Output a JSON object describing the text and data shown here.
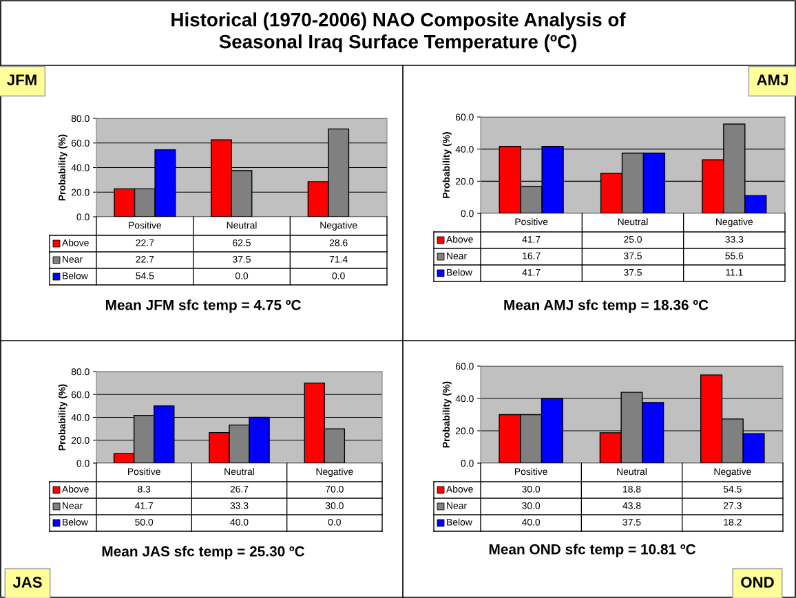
{
  "chart_data": [
    {
      "type": "bar",
      "title": "Historical (1970-2006) NAO Composite Analysis of\nSeasonal Iraq Surface Temperature (ºC)",
      "subtitle": "JFM",
      "ylabel": "Probability (%)",
      "categories": [
        "Positive",
        "Neutral",
        "Negative"
      ],
      "series": [
        {
          "name": "Above",
          "color": "#ff0000",
          "values": [
            22.7,
            62.5,
            28.6
          ],
          "value_labels": [
            "22.7",
            "62.5",
            "28.6"
          ]
        },
        {
          "name": "Near",
          "color": "#808080",
          "values": [
            22.7,
            37.5,
            71.4
          ],
          "value_labels": [
            "22.7",
            "37.5",
            "71.4"
          ]
        },
        {
          "name": "Below",
          "color": "#0000ff",
          "values": [
            54.5,
            0.0,
            0.0
          ],
          "value_labels": [
            "54.5",
            "0.0",
            "0.0"
          ]
        }
      ],
      "ylim": [
        0,
        80
      ],
      "yticks": [
        {
          "value": 0,
          "label": "0.0"
        },
        {
          "value": 20,
          "label": "20.0"
        },
        {
          "value": 40,
          "label": "40.0"
        },
        {
          "value": 60,
          "label": "60.0"
        },
        {
          "value": 80,
          "label": "80.0"
        }
      ],
      "grid": "y",
      "legend": "bottom left",
      "annotations": [
        "Mean JFM sfc temp = 4.75 ºC"
      ]
    },
    {
      "type": "bar",
      "subtitle": "AMJ",
      "ylabel": "Probability (%)",
      "categories": [
        "Positive",
        "Neutral",
        "Negative"
      ],
      "series": [
        {
          "name": "Above",
          "color": "#ff0000",
          "values": [
            41.7,
            25.0,
            33.3
          ],
          "value_labels": [
            "41.7",
            "25.0",
            "33.3"
          ]
        },
        {
          "name": "Near",
          "color": "#808080",
          "values": [
            16.7,
            37.5,
            55.6
          ],
          "value_labels": [
            "16.7",
            "37.5",
            "55.6"
          ]
        },
        {
          "name": "Below",
          "color": "#0000ff",
          "values": [
            41.7,
            37.5,
            11.1
          ],
          "value_labels": [
            "41.7",
            "37.5",
            "11.1"
          ]
        }
      ],
      "ylim": [
        0,
        60
      ],
      "yticks": [
        {
          "value": 0,
          "label": "0.0"
        },
        {
          "value": 20,
          "label": "20.0"
        },
        {
          "value": 40,
          "label": "40.0"
        },
        {
          "value": 60,
          "label": "60.0"
        }
      ],
      "grid": "y",
      "legend": "bottom left",
      "annotations": [
        "Mean AMJ sfc temp = 18.36 ºC"
      ]
    },
    {
      "type": "bar",
      "subtitle": "JAS",
      "ylabel": "Probability (%)",
      "categories": [
        "Positive",
        "Neutral",
        "Negative"
      ],
      "series": [
        {
          "name": "Above",
          "color": "#ff0000",
          "values": [
            8.3,
            26.7,
            70.0
          ],
          "value_labels": [
            "8.3",
            "26.7",
            "70.0"
          ]
        },
        {
          "name": "Near",
          "color": "#808080",
          "values": [
            41.7,
            33.3,
            30.0
          ],
          "value_labels": [
            "41.7",
            "33.3",
            "30.0"
          ]
        },
        {
          "name": "Below",
          "color": "#0000ff",
          "values": [
            50.0,
            40.0,
            0.0
          ],
          "value_labels": [
            "50.0",
            "40.0",
            "0.0"
          ]
        }
      ],
      "ylim": [
        0,
        80
      ],
      "yticks": [
        {
          "value": 0,
          "label": "0.0"
        },
        {
          "value": 20,
          "label": "20.0"
        },
        {
          "value": 40,
          "label": "40.0"
        },
        {
          "value": 60,
          "label": "60.0"
        },
        {
          "value": 80,
          "label": "80.0"
        }
      ],
      "grid": "y",
      "legend": "bottom left",
      "annotations": [
        "Mean JAS sfc temp = 25.30 ºC"
      ]
    },
    {
      "type": "bar",
      "subtitle": "OND",
      "ylabel": "Probability (%)",
      "categories": [
        "Positive",
        "Neutral",
        "Negative"
      ],
      "series": [
        {
          "name": "Above",
          "color": "#ff0000",
          "values": [
            30.0,
            18.8,
            54.5
          ],
          "value_labels": [
            "30.0",
            "18.8",
            "54.5"
          ]
        },
        {
          "name": "Near",
          "color": "#808080",
          "values": [
            30.0,
            43.8,
            27.3
          ],
          "value_labels": [
            "30.0",
            "43.8",
            "27.3"
          ]
        },
        {
          "name": "Below",
          "color": "#0000ff",
          "values": [
            40.0,
            37.5,
            18.2
          ],
          "value_labels": [
            "40.0",
            "37.5",
            "18.2"
          ]
        }
      ],
      "ylim": [
        0,
        60
      ],
      "yticks": [
        {
          "value": 0,
          "label": "0.0"
        },
        {
          "value": 20,
          "label": "20.0"
        },
        {
          "value": 40,
          "label": "40.0"
        },
        {
          "value": 60,
          "label": "60.0"
        }
      ],
      "grid": "y",
      "legend": "bottom left",
      "annotations": [
        "Mean OND sfc temp = 10.81 ºC"
      ]
    }
  ]
}
